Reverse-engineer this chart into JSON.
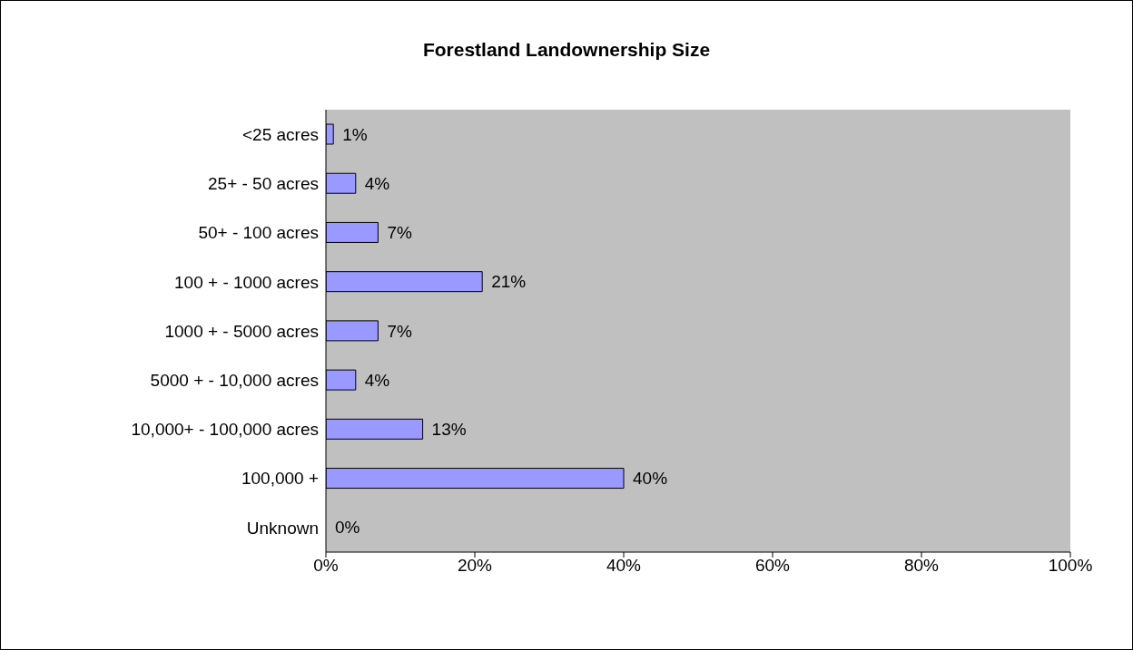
{
  "chart_data": {
    "type": "bar",
    "orientation": "horizontal",
    "title": "Forestland Landownership Size",
    "categories": [
      "<25 acres",
      "25+ - 50 acres",
      "50+ - 100 acres",
      "100 + - 1000 acres",
      "1000 + - 5000 acres",
      "5000 + - 10,000 acres",
      "10,000+ - 100,000 acres",
      "100,000 +",
      "Unknown"
    ],
    "values": [
      1,
      4,
      7,
      21,
      7,
      4,
      13,
      40,
      0
    ],
    "value_labels": [
      "1%",
      "4%",
      "7%",
      "21%",
      "7%",
      "4%",
      "13%",
      "40%",
      "0%"
    ],
    "color": "#9999ff",
    "xlim": [
      0,
      100
    ],
    "xticks": [
      {
        "value": 0,
        "label": "0%"
      },
      {
        "value": 20,
        "label": "20%"
      },
      {
        "value": 40,
        "label": "40%"
      },
      {
        "value": 60,
        "label": "60%"
      },
      {
        "value": 80,
        "label": "80%"
      },
      {
        "value": 100,
        "label": "100%"
      }
    ],
    "grid": false,
    "legend": false
  }
}
